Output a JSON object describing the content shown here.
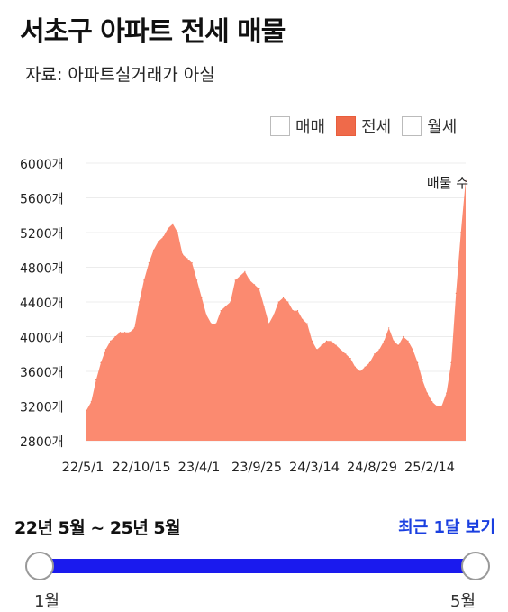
{
  "header": {
    "title": "서초구 아파트 전세 매물",
    "source": "자료: 아파트실거래가 아실"
  },
  "legend": [
    {
      "label": "매매",
      "active": false
    },
    {
      "label": "전세",
      "active": true
    },
    {
      "label": "월세",
      "active": false
    }
  ],
  "colors": {
    "area": "#fb8a70",
    "active_legend": "#ef6a4a",
    "slider": "#1a1aee",
    "link": "#1a3fe0"
  },
  "chart_data": {
    "type": "area",
    "series_label": "매물 수",
    "y_ticks": [
      "2800개",
      "3200개",
      "3600개",
      "4000개",
      "4400개",
      "4800개",
      "5200개",
      "5600개",
      "6000개"
    ],
    "ylim": [
      2800,
      6000
    ],
    "x_ticks": [
      "22/5/1",
      "22/10/15",
      "23/4/1",
      "23/9/25",
      "24/3/14",
      "24/8/29",
      "25/2/14"
    ],
    "values": [
      3150,
      3250,
      3500,
      3700,
      3850,
      3950,
      4000,
      4050,
      4050,
      4050,
      4100,
      4400,
      4650,
      4850,
      5000,
      5100,
      5150,
      5250,
      5300,
      5200,
      4950,
      4900,
      4850,
      4650,
      4450,
      4250,
      4150,
      4150,
      4300,
      4350,
      4400,
      4650,
      4700,
      4750,
      4650,
      4600,
      4550,
      4350,
      4150,
      4250,
      4400,
      4450,
      4400,
      4300,
      4300,
      4200,
      4150,
      3950,
      3850,
      3900,
      3950,
      3950,
      3900,
      3850,
      3800,
      3750,
      3650,
      3600,
      3650,
      3700,
      3800,
      3850,
      3950,
      4100,
      3950,
      3900,
      4000,
      3950,
      3850,
      3700,
      3500,
      3350,
      3250,
      3200,
      3200,
      3350,
      3700,
      4500,
      5200,
      5800
    ]
  },
  "slider": {
    "range_label": "22년 5월 ~ 25년 5월",
    "recent_link": "최근 1달 보기",
    "start_label": "1월",
    "end_label": "5월"
  }
}
